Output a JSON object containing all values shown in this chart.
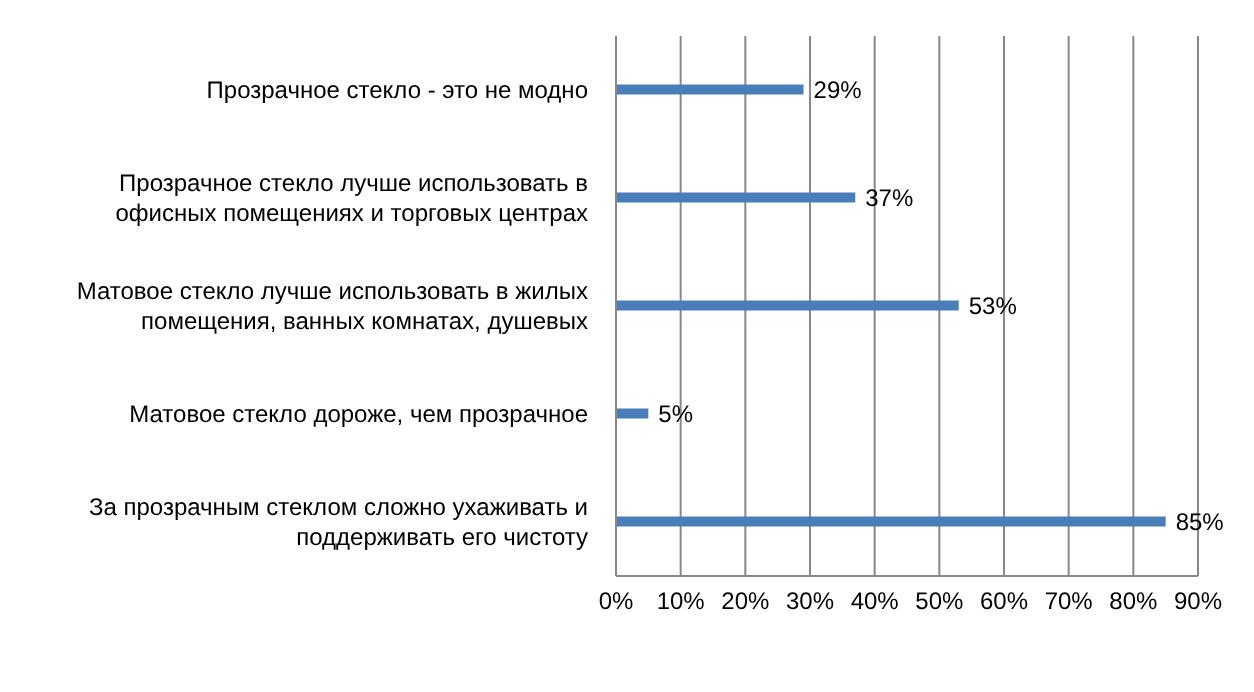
{
  "chart_data": {
    "type": "bar",
    "orientation": "horizontal",
    "categories": [
      "Прозрачное стекло - это не модно",
      "Прозрачное стекло лучше использовать в офисных помещениях и торговых центрах",
      "Матовое стекло лучше использовать в жилых помещения, ванных комнатах, душевых",
      "Матовое стекло дороже, чем прозрачное",
      "За прозрачным стеклом сложно ухаживать и поддерживать его чистоту"
    ],
    "values": [
      29,
      37,
      53,
      5,
      85
    ],
    "value_labels": [
      "29%",
      "37%",
      "53%",
      "5%",
      "85%"
    ],
    "color": "#4a7ebb",
    "xlim": [
      0,
      90
    ],
    "xticks": [
      {
        "value": 0,
        "label": "0%"
      },
      {
        "value": 10,
        "label": "10%"
      },
      {
        "value": 20,
        "label": "20%"
      },
      {
        "value": 30,
        "label": "30%"
      },
      {
        "value": 40,
        "label": "40%"
      },
      {
        "value": 50,
        "label": "50%"
      },
      {
        "value": 60,
        "label": "60%"
      },
      {
        "value": 70,
        "label": "70%"
      },
      {
        "value": 80,
        "label": "80%"
      },
      {
        "value": 90,
        "label": "90%"
      }
    ],
    "grid": "x",
    "legend": false
  }
}
